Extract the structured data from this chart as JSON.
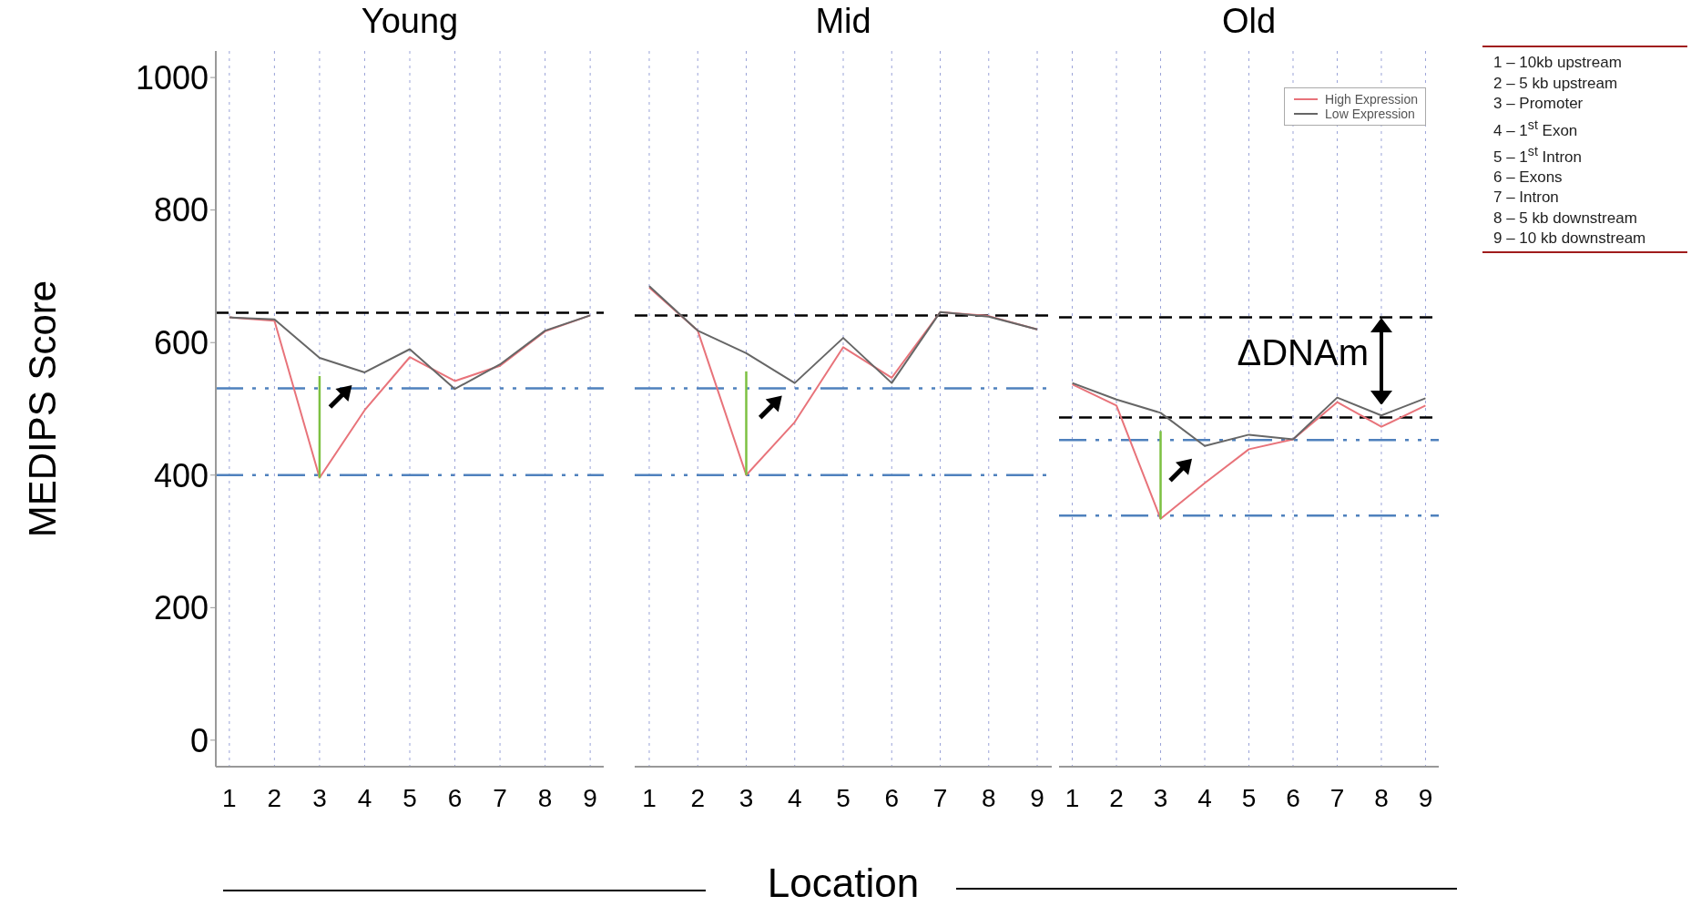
{
  "chart_data": [
    {
      "type": "line",
      "title": "Young",
      "ylabel": "MEDIPS Score",
      "categories": [
        "1",
        "2",
        "3",
        "4",
        "5",
        "6",
        "7",
        "8",
        "9"
      ],
      "ylim": [
        -40,
        1040
      ],
      "yticks": [
        0,
        200,
        400,
        600,
        800,
        1000
      ],
      "grid": "x",
      "legend": false,
      "marker": "none",
      "series": [
        {
          "color": "#e8737a",
          "values": [
            638,
            633,
            396,
            498,
            578,
            542,
            565,
            617,
            641
          ]
        },
        {
          "color": "#666666",
          "values": [
            638,
            635,
            577,
            555,
            590,
            530,
            567,
            618,
            641
          ]
        }
      ],
      "ref_lines": [
        {
          "axis": "y",
          "value": 645,
          "color": "#000000",
          "line_style": "dashed"
        },
        {
          "axis": "y",
          "value": 531,
          "color": "#4f81bd",
          "line_style": "dashed"
        },
        {
          "axis": "y",
          "value": 400,
          "color": "#4f81bd",
          "line_style": "dashed"
        }
      ]
    },
    {
      "type": "line",
      "title": "Mid",
      "xlabel": "Location",
      "categories": [
        "1",
        "2",
        "3",
        "4",
        "5",
        "6",
        "7",
        "8",
        "9"
      ],
      "ylim": [
        -40,
        1040
      ],
      "yticks": [
        0,
        200,
        400,
        600,
        800,
        1000
      ],
      "grid": "x",
      "legend": false,
      "marker": "none",
      "tick_labels": "x",
      "series": [
        {
          "color": "#e8737a",
          "values": [
            683,
            618,
            400,
            480,
            593,
            547,
            646,
            640,
            620
          ]
        },
        {
          "color": "#666666",
          "values": [
            685,
            618,
            584,
            539,
            607,
            539,
            646,
            639,
            620
          ]
        }
      ],
      "ref_lines": [
        {
          "axis": "y",
          "value": 641,
          "color": "#000000",
          "line_style": "dashed"
        },
        {
          "axis": "y",
          "value": 531,
          "color": "#4f81bd",
          "line_style": "dashed"
        },
        {
          "axis": "y",
          "value": 400,
          "color": "#4f81bd",
          "line_style": "dashed"
        }
      ]
    },
    {
      "type": "line",
      "title": "Old",
      "categories": [
        "1",
        "2",
        "3",
        "4",
        "5",
        "6",
        "7",
        "8",
        "9"
      ],
      "ylim": [
        -40,
        1040
      ],
      "yticks": [
        0,
        200,
        400,
        600,
        800,
        1000
      ],
      "grid": "x",
      "legend": "top right",
      "marker": "none",
      "tick_labels": "x",
      "series": [
        {
          "name": "High Expression",
          "color": "#e8737a",
          "values": [
            537,
            505,
            334,
            388,
            439,
            454,
            510,
            473,
            505
          ]
        },
        {
          "name": "Low Expression",
          "color": "#666666",
          "values": [
            539,
            514,
            494,
            444,
            461,
            454,
            517,
            490,
            516
          ]
        }
      ],
      "ref_lines": [
        {
          "axis": "y",
          "value": 638,
          "color": "#000000",
          "line_style": "dashed"
        },
        {
          "axis": "y",
          "value": 487,
          "color": "#000000",
          "line_style": "dashed"
        },
        {
          "axis": "y",
          "value": 453,
          "color": "#4f81bd",
          "line_style": "dashed"
        },
        {
          "axis": "y",
          "value": 339,
          "color": "#4f81bd",
          "line_style": "dashed"
        }
      ],
      "annotations": [
        "ΔDNAm"
      ]
    },
    {
      "type": "other",
      "annotations": [
        "1 – 10kb upstream",
        "2 – 5 kb upstream",
        "3 – Promoter",
        "4 – 1$^{st}$ Exon",
        "5 – 1$^{st}$ Intron",
        "6 – Exons",
        "7 – Intron",
        "8 – 5 kb downstream",
        "9 – 10 kb downstream"
      ]
    }
  ]
}
